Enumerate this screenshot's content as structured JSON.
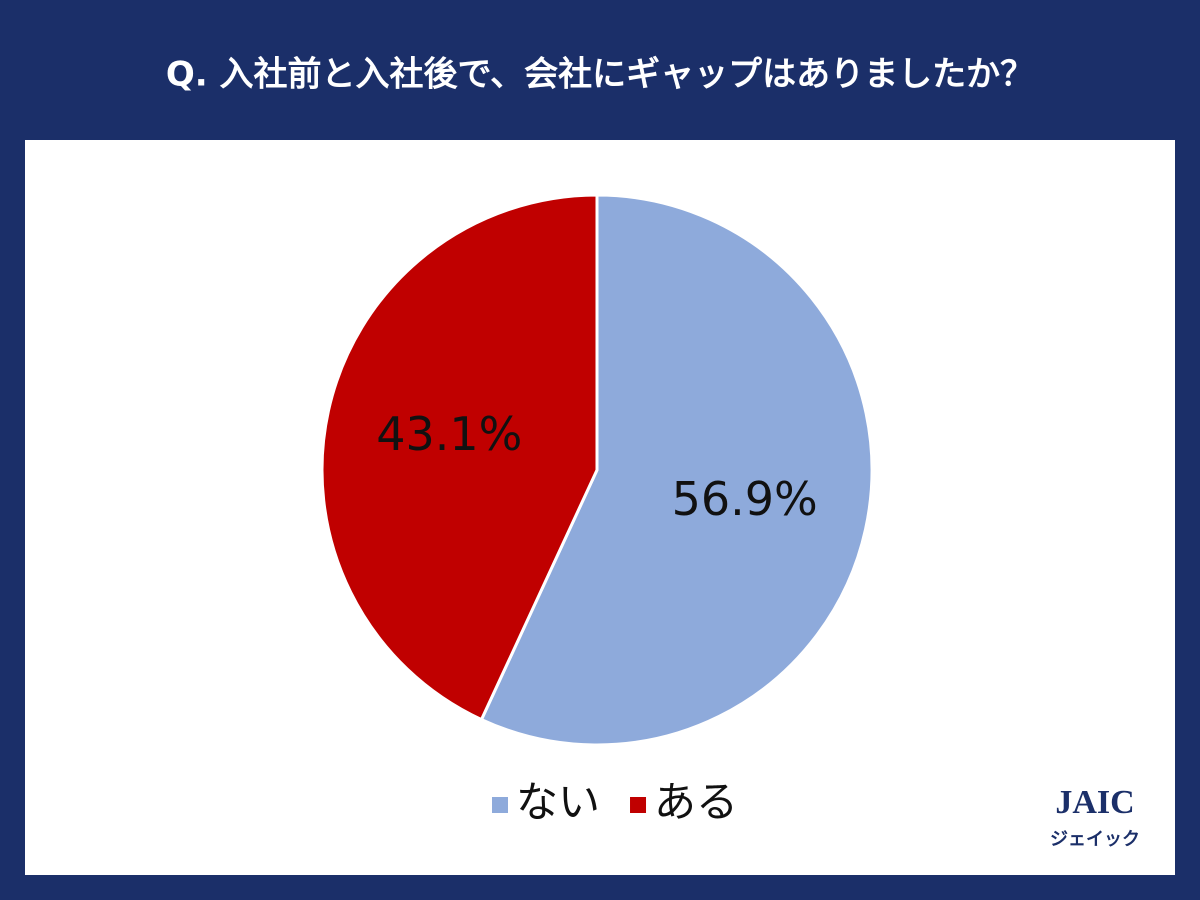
{
  "chart_data": {
    "type": "pie",
    "title": "Q. 入社前と入社後で、会社にギャップはありましたか？",
    "categories": [
      "ない",
      "ある"
    ],
    "values": [
      56.9,
      43.1
    ],
    "value_labels": [
      "56.9%",
      "43.1%"
    ],
    "colors": [
      "#8eaadb",
      "#c00000"
    ],
    "legend": "bottom"
  },
  "logo": {
    "name": "JAIC",
    "kana": "ジェイック"
  }
}
